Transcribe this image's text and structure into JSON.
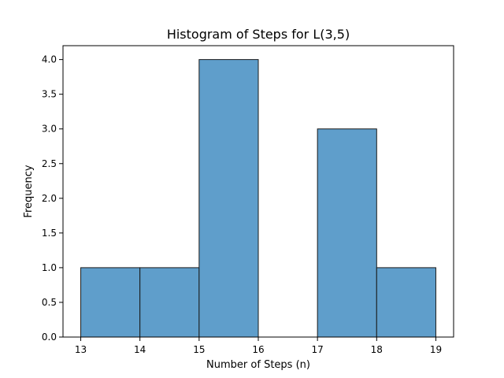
{
  "chart_data": {
    "type": "bar",
    "title": "Histogram of Steps for L(3,5)",
    "xlabel": "Number of Steps (n)",
    "ylabel": "Frequency",
    "bins": [
      {
        "start": 13,
        "end": 14,
        "count": 1
      },
      {
        "start": 14,
        "end": 15,
        "count": 1
      },
      {
        "start": 15,
        "end": 16,
        "count": 4
      },
      {
        "start": 16,
        "end": 17,
        "count": 0
      },
      {
        "start": 17,
        "end": 18,
        "count": 3
      },
      {
        "start": 18,
        "end": 19,
        "count": 1
      }
    ],
    "xlim": [
      12.7,
      19.3
    ],
    "ylim": [
      0,
      4.2
    ],
    "xticks": [
      13,
      14,
      15,
      16,
      17,
      18,
      19
    ],
    "yticks": [
      "0.0",
      "0.5",
      "1.0",
      "1.5",
      "2.0",
      "2.5",
      "3.0",
      "3.5",
      "4.0"
    ],
    "grid": false,
    "colors": {
      "bar_fill": "#5f9ecb",
      "bar_edge": "#1a1a1a"
    }
  }
}
